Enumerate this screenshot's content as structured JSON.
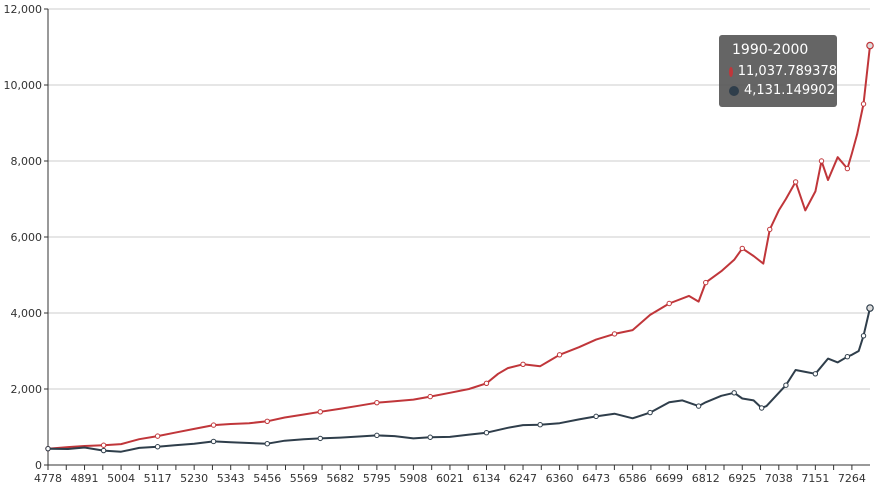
{
  "chart_data": {
    "type": "line",
    "title": "",
    "xlabel": "",
    "ylabel": "",
    "ylim": [
      0,
      12000
    ],
    "xlim": [
      4778,
      7320
    ],
    "grid": true,
    "y_ticks": [
      0,
      2000,
      4000,
      6000,
      8000,
      10000,
      12000
    ],
    "y_tick_labels": [
      "0",
      "2,000",
      "4,000",
      "6,000",
      "8,000",
      "10,000",
      "12,000"
    ],
    "x_ticks": [
      4778,
      4891,
      5004,
      5117,
      5230,
      5343,
      5456,
      5569,
      5682,
      5795,
      5908,
      6021,
      6134,
      6247,
      6360,
      6473,
      6586,
      6699,
      6812,
      6925,
      7038,
      7151,
      7264
    ],
    "series": [
      {
        "color": "#c0363a",
        "x": [
          4778,
          4840,
          4891,
          4950,
          5004,
          5060,
          5117,
          5170,
          5230,
          5290,
          5343,
          5400,
          5456,
          5510,
          5569,
          5620,
          5682,
          5740,
          5795,
          5850,
          5908,
          5960,
          6021,
          6080,
          6134,
          6170,
          6200,
          6247,
          6300,
          6330,
          6360,
          6420,
          6473,
          6530,
          6586,
          6640,
          6699,
          6760,
          6790,
          6812,
          6860,
          6900,
          6925,
          6960,
          6990,
          7010,
          7038,
          7060,
          7090,
          7120,
          7151,
          7170,
          7190,
          7220,
          7250,
          7264,
          7280,
          7300,
          7320
        ],
        "values": [
          430,
          470,
          500,
          520,
          550,
          680,
          760,
          850,
          950,
          1050,
          1080,
          1100,
          1150,
          1250,
          1330,
          1400,
          1480,
          1560,
          1640,
          1680,
          1720,
          1800,
          1900,
          2000,
          2150,
          2400,
          2550,
          2650,
          2600,
          2750,
          2900,
          3100,
          3300,
          3450,
          3550,
          3950,
          4250,
          4450,
          4300,
          4800,
          5100,
          5400,
          5700,
          5500,
          5300,
          6200,
          6700,
          7000,
          7450,
          6700,
          7200,
          8000,
          7500,
          8100,
          7800,
          8200,
          8700,
          9500,
          11037.789378
        ]
      },
      {
        "color": "#2f3e4b",
        "x": [
          4778,
          4840,
          4891,
          4950,
          5004,
          5060,
          5117,
          5170,
          5230,
          5290,
          5343,
          5400,
          5456,
          5510,
          5569,
          5620,
          5682,
          5740,
          5795,
          5850,
          5908,
          5960,
          6021,
          6080,
          6134,
          6200,
          6247,
          6300,
          6360,
          6420,
          6473,
          6530,
          6586,
          6640,
          6699,
          6740,
          6790,
          6812,
          6860,
          6900,
          6925,
          6960,
          6985,
          7000,
          7038,
          7060,
          7090,
          7120,
          7151,
          7190,
          7220,
          7250,
          7264,
          7285,
          7300,
          7320
        ],
        "values": [
          430,
          420,
          460,
          380,
          350,
          450,
          480,
          520,
          560,
          620,
          600,
          580,
          560,
          640,
          680,
          700,
          720,
          750,
          780,
          760,
          700,
          730,
          740,
          800,
          850,
          980,
          1050,
          1060,
          1100,
          1200,
          1280,
          1350,
          1230,
          1380,
          1650,
          1700,
          1550,
          1650,
          1820,
          1900,
          1750,
          1700,
          1500,
          1550,
          1900,
          2100,
          2500,
          2450,
          2400,
          2800,
          2700,
          2850,
          2900,
          3000,
          3400,
          4131.149902
        ]
      }
    ],
    "tooltip": {
      "title": "1990-2000",
      "entries": [
        {
          "value": "11,037.789378",
          "color": "#c0363a"
        },
        {
          "value": "4,131.149902",
          "color": "#2f3e4b"
        }
      ]
    }
  }
}
